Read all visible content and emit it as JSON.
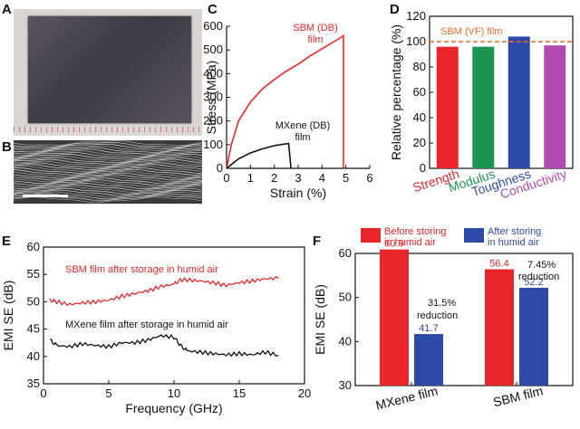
{
  "panels": {
    "A": "A",
    "B": "B",
    "C": "C",
    "D": "D",
    "E": "E",
    "F": "F"
  },
  "colors": {
    "red": "#e8262b",
    "black": "#111111",
    "green": "#1a9650",
    "blue": "#2e4aa8",
    "purple": "#b04ab0",
    "dashed": "#e86a2a"
  },
  "chart_data": [
    {
      "id": "C",
      "type": "line",
      "xlabel": "Strain (%)",
      "ylabel": "Stress (MPa)",
      "xlim": [
        0,
        6
      ],
      "ylim": [
        0,
        600
      ],
      "xticks": [
        "0",
        "1",
        "2",
        "3",
        "4",
        "5",
        "6"
      ],
      "yticks": [
        "0",
        "100",
        "200",
        "300",
        "400",
        "500",
        "600"
      ],
      "series": [
        {
          "name": "SBM (DB) film",
          "color": "#e8262b",
          "points": [
            [
              0,
              0
            ],
            [
              0.2,
              100
            ],
            [
              0.5,
              200
            ],
            [
              1,
              280
            ],
            [
              1.5,
              335
            ],
            [
              2,
              375
            ],
            [
              2.5,
              410
            ],
            [
              3,
              440
            ],
            [
              3.5,
              475
            ],
            [
              4,
              505
            ],
            [
              4.5,
              535
            ],
            [
              4.9,
              560
            ],
            [
              4.9,
              0
            ]
          ]
        },
        {
          "name": "MXene (DB) film",
          "color": "#111111",
          "points": [
            [
              0,
              0
            ],
            [
              0.5,
              40
            ],
            [
              1,
              65
            ],
            [
              1.5,
              82
            ],
            [
              2,
              96
            ],
            [
              2.6,
              105
            ],
            [
              2.7,
              0
            ]
          ]
        }
      ],
      "annotations": [
        "SBM (DB)",
        "film",
        "MXene (DB)",
        "film"
      ]
    },
    {
      "id": "D",
      "type": "bar",
      "ylabel": "Relative percentage (%)",
      "ylim": [
        0,
        120
      ],
      "yticks": [
        "0",
        "20",
        "40",
        "60",
        "80",
        "100",
        "120"
      ],
      "categories": [
        "Strength",
        "Modulus",
        "Toughness",
        "Conductivity"
      ],
      "values": [
        96,
        96,
        104,
        97
      ],
      "bar_colors": [
        "#e8262b",
        "#1a9650",
        "#2e4aa8",
        "#b04ab0"
      ],
      "reference": {
        "label": "SBM (VF) film",
        "value": 100
      }
    },
    {
      "id": "E",
      "type": "line",
      "xlabel": "Frequency (GHz)",
      "ylabel": "EMI SE (dB)",
      "xlim": [
        0,
        20
      ],
      "ylim": [
        35,
        60
      ],
      "xticks": [
        "0",
        "5",
        "10",
        "15",
        "20"
      ],
      "yticks": [
        "35",
        "40",
        "45",
        "50",
        "55",
        "60"
      ],
      "series": [
        {
          "name": "SBM film after storage in humid air",
          "color": "#e8262b",
          "points": [
            [
              0.5,
              50.3
            ],
            [
              1,
              50.0
            ],
            [
              2,
              49.5
            ],
            [
              3,
              49.8
            ],
            [
              4,
              50.0
            ],
            [
              5,
              50.3
            ],
            [
              6,
              51.0
            ],
            [
              7,
              51.5
            ],
            [
              8,
              52.0
            ],
            [
              9,
              52.8
            ],
            [
              10,
              53.2
            ],
            [
              10.5,
              54.0
            ],
            [
              11,
              54.0
            ],
            [
              12,
              53.8
            ],
            [
              13,
              53.5
            ],
            [
              14,
              53.0
            ],
            [
              15,
              53.5
            ],
            [
              16,
              53.8
            ],
            [
              17,
              54.2
            ],
            [
              18,
              54.3
            ]
          ]
        },
        {
          "name": "MXene film after storage in humid air",
          "color": "#111111",
          "points": [
            [
              0.5,
              43.0
            ],
            [
              1,
              42.0
            ],
            [
              2,
              41.8
            ],
            [
              3,
              42.3
            ],
            [
              4,
              42.0
            ],
            [
              5,
              41.8
            ],
            [
              6,
              42.5
            ],
            [
              7,
              42.5
            ],
            [
              8,
              43.0
            ],
            [
              9,
              43.8
            ],
            [
              10,
              43.5
            ],
            [
              10.5,
              42.0
            ],
            [
              11,
              41.0
            ],
            [
              12,
              40.8
            ],
            [
              13,
              40.5
            ],
            [
              14,
              40.3
            ],
            [
              15,
              40.5
            ],
            [
              16,
              40.3
            ],
            [
              17,
              40.8
            ],
            [
              18,
              40.2
            ]
          ]
        }
      ]
    },
    {
      "id": "F",
      "type": "bar",
      "ylabel": "EMI SE (dB)",
      "ylim": [
        30,
        60
      ],
      "yticks": [
        "30",
        "40",
        "50",
        "60"
      ],
      "categories": [
        "MXene film",
        "SBM film"
      ],
      "series": [
        {
          "name": "Before storing in humid air",
          "color": "#e8262b",
          "values": [
            60.9,
            56.4
          ]
        },
        {
          "name": "After storing in humid air",
          "color": "#2e4aa8",
          "values": [
            41.7,
            52.2
          ]
        }
      ],
      "value_labels": [
        [
          "60.9",
          "41.7"
        ],
        [
          "56.4",
          "52.2"
        ]
      ],
      "legend": {
        "before_line1": "Before storing",
        "before_line2": "in humid air",
        "after_line1": "After storing",
        "after_line2": "in humid air"
      },
      "annotations": [
        {
          "line1": "31.5%",
          "line2": "reduction"
        },
        {
          "line1": "7.45%",
          "line2": "reduction"
        }
      ]
    }
  ]
}
